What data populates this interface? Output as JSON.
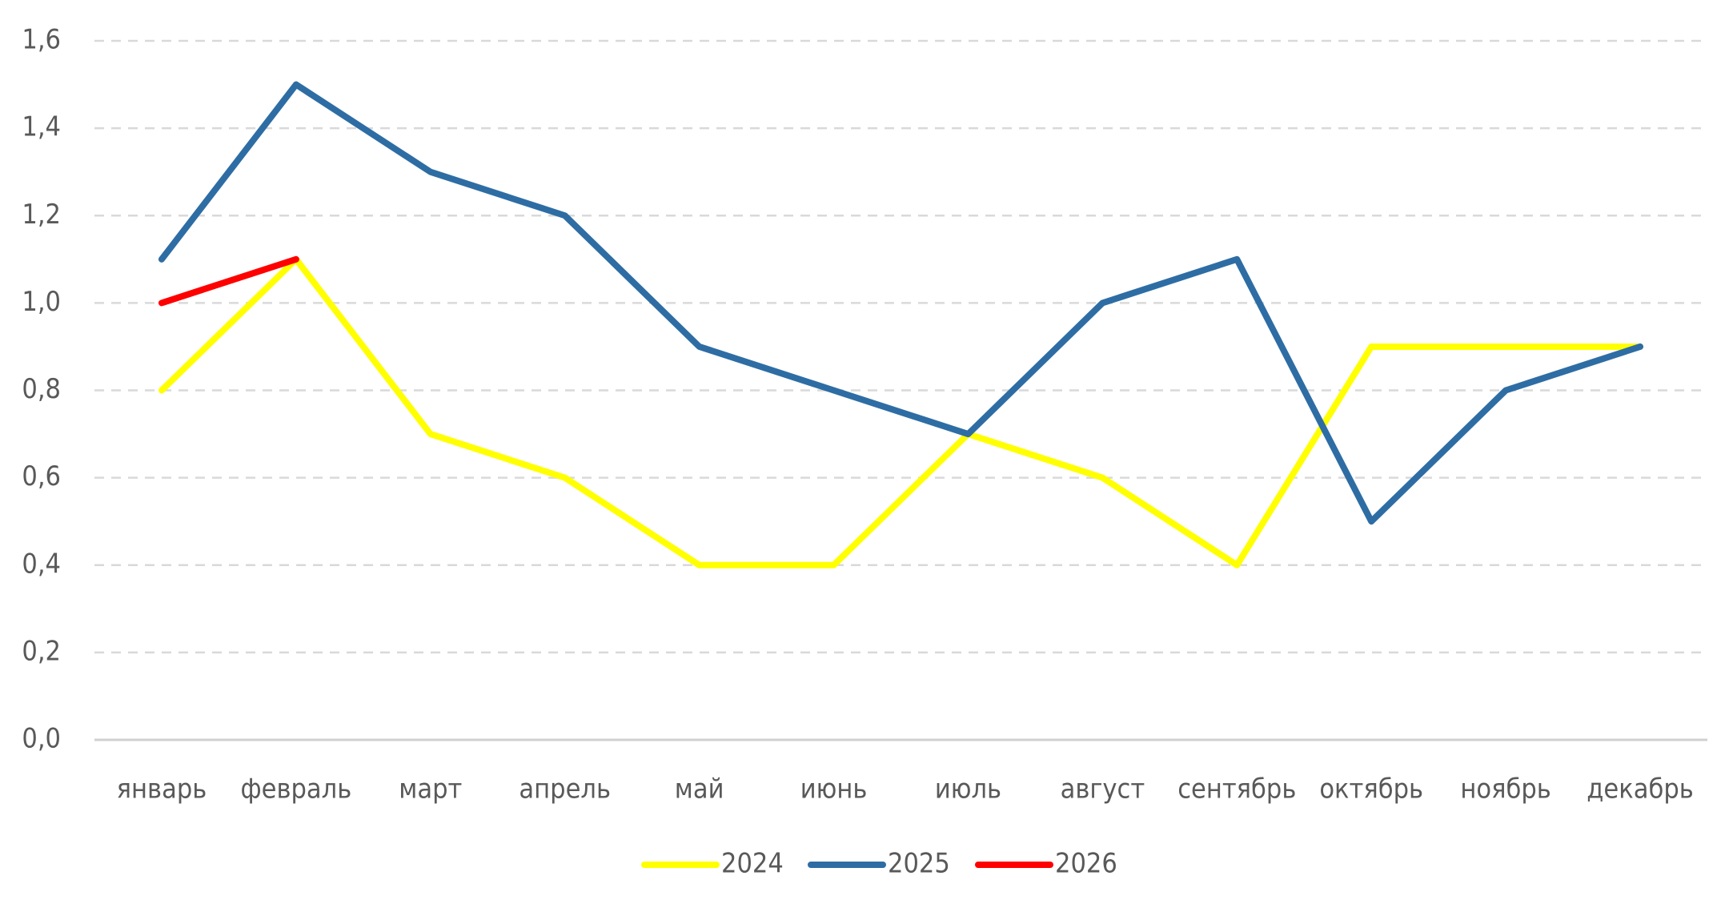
{
  "chart_data": {
    "type": "line",
    "categories": [
      "январь",
      "февраль",
      "март",
      "апрель",
      "май",
      "июнь",
      "июль",
      "август",
      "сентябрь",
      "октябрь",
      "ноябрь",
      "декабрь"
    ],
    "series": [
      {
        "name": "2024",
        "color": "#ffff00",
        "values": [
          0.8,
          1.1,
          0.7,
          0.6,
          0.4,
          0.4,
          0.7,
          0.6,
          0.4,
          0.9,
          0.9,
          0.9
        ]
      },
      {
        "name": "2025",
        "color": "#2e6da4",
        "values": [
          1.1,
          1.5,
          1.3,
          1.2,
          0.9,
          0.8,
          0.7,
          1.0,
          1.1,
          0.5,
          0.8,
          0.9
        ]
      },
      {
        "name": "2026",
        "color": "#ff0000",
        "values": [
          1.0,
          1.1,
          null,
          null,
          null,
          null,
          null,
          null,
          null,
          null,
          null,
          null
        ]
      }
    ],
    "ylim": [
      0,
      1.6
    ],
    "yticks": [
      {
        "value": 0,
        "label": "0,0"
      },
      {
        "value": 0.2,
        "label": "0,2"
      },
      {
        "value": 0.4,
        "label": "0,4"
      },
      {
        "value": 0.6,
        "label": "0,6"
      },
      {
        "value": 0.8,
        "label": "0,8"
      },
      {
        "value": 1.0,
        "label": "1,0"
      },
      {
        "value": 1.2,
        "label": "1,2"
      },
      {
        "value": 1.4,
        "label": "1,4"
      },
      {
        "value": 1.6,
        "label": "1,6"
      }
    ],
    "grid": true,
    "legend": "bottom"
  }
}
